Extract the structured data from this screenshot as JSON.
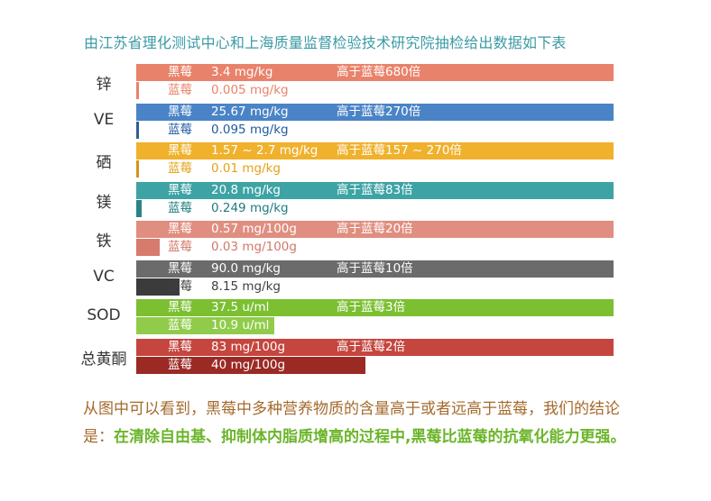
{
  "title": "由江苏省理化测试中心和上海质量监督检验技术研究院抽检给出数据如下表",
  "chart_data": {
    "type": "bar",
    "orientation": "horizontal",
    "series": [
      {
        "name": "黑莓"
      },
      {
        "name": "蓝莓"
      }
    ],
    "rows": [
      {
        "label": "锌",
        "color": "#e9826a",
        "black_value": "3.4 mg/kg",
        "black_compare": "高于蓝莓680倍",
        "blue_value": "0.005 mg/kg",
        "blue_fraction": 0.0015,
        "text_light": "#ffffff",
        "text_dark": "#e9826a"
      },
      {
        "label": "VE",
        "color": "#4a84c6",
        "black_value": "25.67 mg/kg",
        "black_compare": "高于蓝莓270倍",
        "blue_value": "0.095 mg/kg",
        "blue_fraction": 0.0037,
        "text_light": "#ffffff",
        "text_dark": "#1f5aa0",
        "blue_color": "#2d5f95"
      },
      {
        "label": "硒",
        "color": "#f0b12c",
        "black_value": "1.57 ~ 2.7 mg/kg",
        "black_compare": "高于蓝莓157 ~ 270倍",
        "blue_value": "0.01 mg/kg",
        "blue_fraction": 0.0063,
        "text_light": "#ffffff",
        "text_dark": "#e3a215",
        "blue_color": "#d69418"
      },
      {
        "label": "镁",
        "color": "#3da3a5",
        "black_value": "20.8 mg/kg",
        "black_compare": "高于蓝莓83倍",
        "blue_value": "0.249 mg/kg",
        "blue_fraction": 0.012,
        "text_light": "#ffffff",
        "text_dark": "#1e7c80",
        "blue_color": "#2b8386"
      },
      {
        "label": "铁",
        "color": "#e08e80",
        "black_value": "0.57 mg/100g",
        "black_compare": "高于蓝莓20倍",
        "blue_value": "0.03 mg/100g",
        "blue_fraction": 0.05,
        "text_light": "#ffffff",
        "text_dark": "#d1786a",
        "blue_color": "#d77b6d"
      },
      {
        "label": "VC",
        "color": "#6b6b6b",
        "black_value": "90.0 mg/kg",
        "black_compare": "高于蓝莓10倍",
        "blue_value": "8.15 mg/kg",
        "blue_fraction": 0.09,
        "text_light": "#ffffff",
        "text_dark": "#3f3f3f",
        "blue_color": "#3b3b3b"
      },
      {
        "label": "SOD",
        "color": "#7cc032",
        "black_value": "37.5 u/ml",
        "black_compare": "高于蓝莓3倍",
        "blue_value": "10.9 u/ml",
        "blue_fraction": 0.29,
        "text_light": "#ffffff",
        "text_dark": "#ffffff",
        "blue_color": "#90cc4a"
      },
      {
        "label": "总黄酮",
        "color": "#c5463e",
        "black_value": "83 mg/100g",
        "black_compare": "高于蓝莓2倍",
        "blue_value": "40 mg/100g",
        "blue_fraction": 0.48,
        "text_light": "#ffffff",
        "text_dark": "#ffffff",
        "blue_color": "#9b2a25"
      }
    ]
  },
  "conclusion": {
    "part1": "从图中可以看到，黑莓中多种营养物质的含量高于或者远高于蓝莓，我们的结论是：",
    "part2": "在清除自由基、抑制体内脂质增高的过程中,黑莓比蓝莓的抗氧化能力更强。"
  }
}
